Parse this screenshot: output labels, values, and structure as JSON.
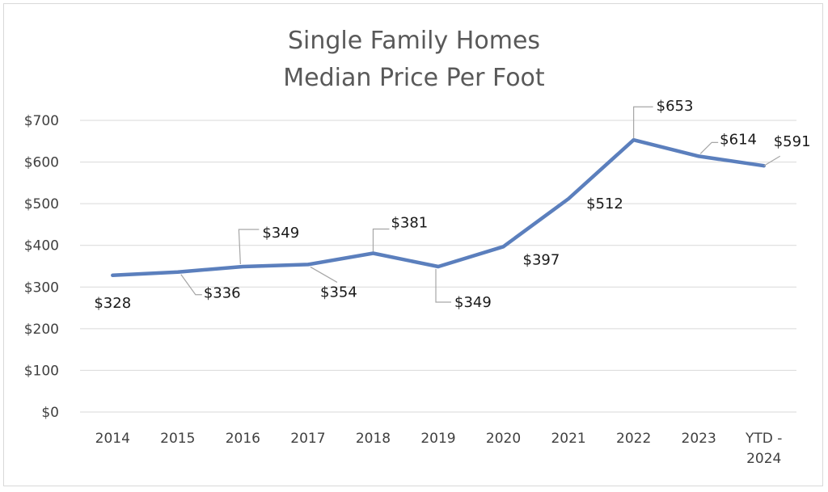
{
  "chart_data": {
    "type": "line",
    "title_line1": "Single Family Homes",
    "title_line2": "Median Price Per Foot",
    "categories": [
      [
        "2014"
      ],
      [
        "2015"
      ],
      [
        "2016"
      ],
      [
        "2017"
      ],
      [
        "2018"
      ],
      [
        "2019"
      ],
      [
        "2020"
      ],
      [
        "2021"
      ],
      [
        "2022"
      ],
      [
        "2023"
      ],
      [
        "YTD -",
        "2024"
      ]
    ],
    "series": [
      {
        "values": [
          328,
          336,
          349,
          354,
          381,
          349,
          397,
          512,
          653,
          614,
          591
        ]
      }
    ],
    "data_labels": [
      "$328",
      "$336",
      "$349",
      "$354",
      "$381",
      "$349",
      "$397",
      "$512",
      "$653",
      "$614",
      "$591"
    ],
    "y_ticks": [
      {
        "value": 0,
        "label": "$0"
      },
      {
        "value": 100,
        "label": "$100"
      },
      {
        "value": 200,
        "label": "$200"
      },
      {
        "value": 300,
        "label": "$300"
      },
      {
        "value": 400,
        "label": "$400"
      },
      {
        "value": 500,
        "label": "$500"
      },
      {
        "value": 600,
        "label": "$600"
      },
      {
        "value": 700,
        "label": "$700"
      }
    ],
    "ylim": [
      0,
      700
    ],
    "grid": true,
    "legend": "none",
    "colors": {
      "line": "#5b7fbd",
      "grid": "#d9d9d9",
      "leader": "#a6a6a6"
    }
  }
}
